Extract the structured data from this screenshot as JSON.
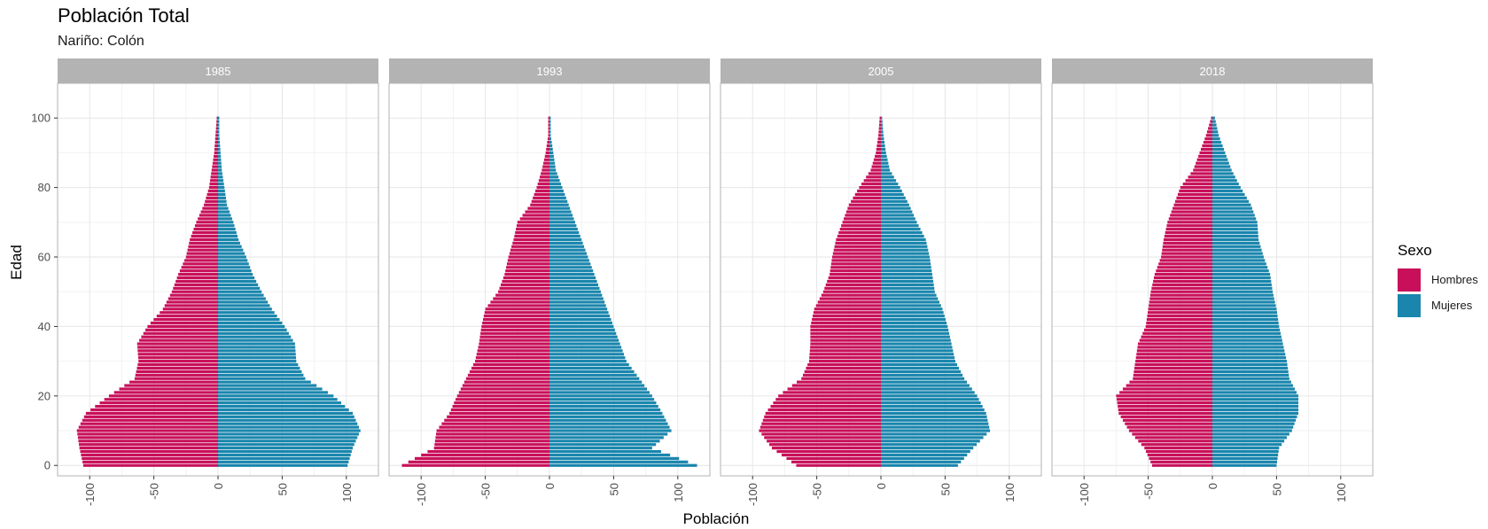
{
  "title": "Población Total",
  "subtitle": "Nariño: Colón",
  "legend": {
    "title": "Sexo",
    "items": [
      {
        "label": "Hombres",
        "color": "#C8105A"
      },
      {
        "label": "Mujeres",
        "color": "#1A86AD"
      }
    ]
  },
  "chart_data": {
    "type": "bar",
    "orientation": "horizontal",
    "xlabel": "Población",
    "ylabel": "Edad",
    "xlim": [
      -125,
      125
    ],
    "ylim": [
      -3,
      110
    ],
    "x_ticks": [
      -100,
      -50,
      0,
      50,
      100
    ],
    "x_tick_labels": [
      "-100",
      "-50",
      "0",
      "50",
      "100"
    ],
    "y_ticks": [
      0,
      20,
      40,
      60,
      80,
      100
    ],
    "y_tick_labels": [
      "0",
      "20",
      "40",
      "60",
      "80",
      "100"
    ],
    "grid": true,
    "legend_position": "right",
    "series_names": [
      "Hombres",
      "Mujeres"
    ],
    "panels": [
      {
        "label": "1985",
        "ages": [
          0,
          5,
          10,
          15,
          20,
          25,
          30,
          35,
          40,
          45,
          50,
          55,
          60,
          65,
          70,
          75,
          80,
          85,
          90,
          95,
          100
        ],
        "Hombres": [
          -105,
          -108,
          -110,
          -103,
          -85,
          -65,
          -62,
          -63,
          -55,
          -43,
          -36,
          -31,
          -25,
          -22,
          -17,
          -11,
          -7,
          -5,
          -3,
          -2,
          -1
        ],
        "Mujeres": [
          101,
          105,
          111,
          105,
          90,
          68,
          61,
          60,
          52,
          42,
          34,
          27,
          22,
          16,
          12,
          7,
          5,
          3,
          2,
          1,
          1
        ]
      },
      {
        "label": "1993",
        "ages": [
          0,
          5,
          10,
          15,
          20,
          25,
          30,
          35,
          40,
          45,
          50,
          55,
          60,
          65,
          70,
          75,
          80,
          85,
          90,
          95,
          100
        ],
        "Hombres": [
          -115,
          -90,
          -88,
          -78,
          -72,
          -65,
          -58,
          -55,
          -53,
          -50,
          -40,
          -35,
          -32,
          -28,
          -25,
          -15,
          -10,
          -6,
          -3,
          -1,
          -1
        ],
        "Mujeres": [
          115,
          80,
          95,
          88,
          80,
          70,
          60,
          55,
          50,
          45,
          40,
          35,
          30,
          25,
          20,
          15,
          10,
          5,
          3,
          1,
          1
        ]
      },
      {
        "label": "2005",
        "ages": [
          0,
          5,
          10,
          15,
          20,
          25,
          30,
          35,
          40,
          45,
          50,
          55,
          60,
          65,
          70,
          75,
          80,
          85,
          90,
          95,
          100
        ],
        "Hombres": [
          -66,
          -85,
          -95,
          -90,
          -80,
          -62,
          -56,
          -55,
          -55,
          -52,
          -45,
          -40,
          -38,
          -35,
          -30,
          -25,
          -17,
          -8,
          -4,
          -2,
          -1
        ],
        "Mujeres": [
          60,
          72,
          85,
          82,
          75,
          65,
          58,
          55,
          52,
          48,
          42,
          40,
          38,
          35,
          28,
          22,
          15,
          7,
          4,
          2,
          1
        ]
      },
      {
        "label": "2018",
        "ages": [
          0,
          5,
          10,
          15,
          20,
          25,
          30,
          35,
          40,
          45,
          50,
          55,
          60,
          65,
          70,
          75,
          80,
          85,
          90,
          95,
          100
        ],
        "Hombres": [
          -47,
          -53,
          -65,
          -73,
          -75,
          -62,
          -60,
          -58,
          -52,
          -50,
          -48,
          -45,
          -40,
          -38,
          -35,
          -30,
          -25,
          -15,
          -10,
          -5,
          -1
        ],
        "Mujeres": [
          50,
          52,
          62,
          67,
          67,
          60,
          58,
          55,
          52,
          50,
          47,
          45,
          40,
          36,
          35,
          30,
          22,
          15,
          10,
          5,
          2
        ]
      }
    ]
  }
}
